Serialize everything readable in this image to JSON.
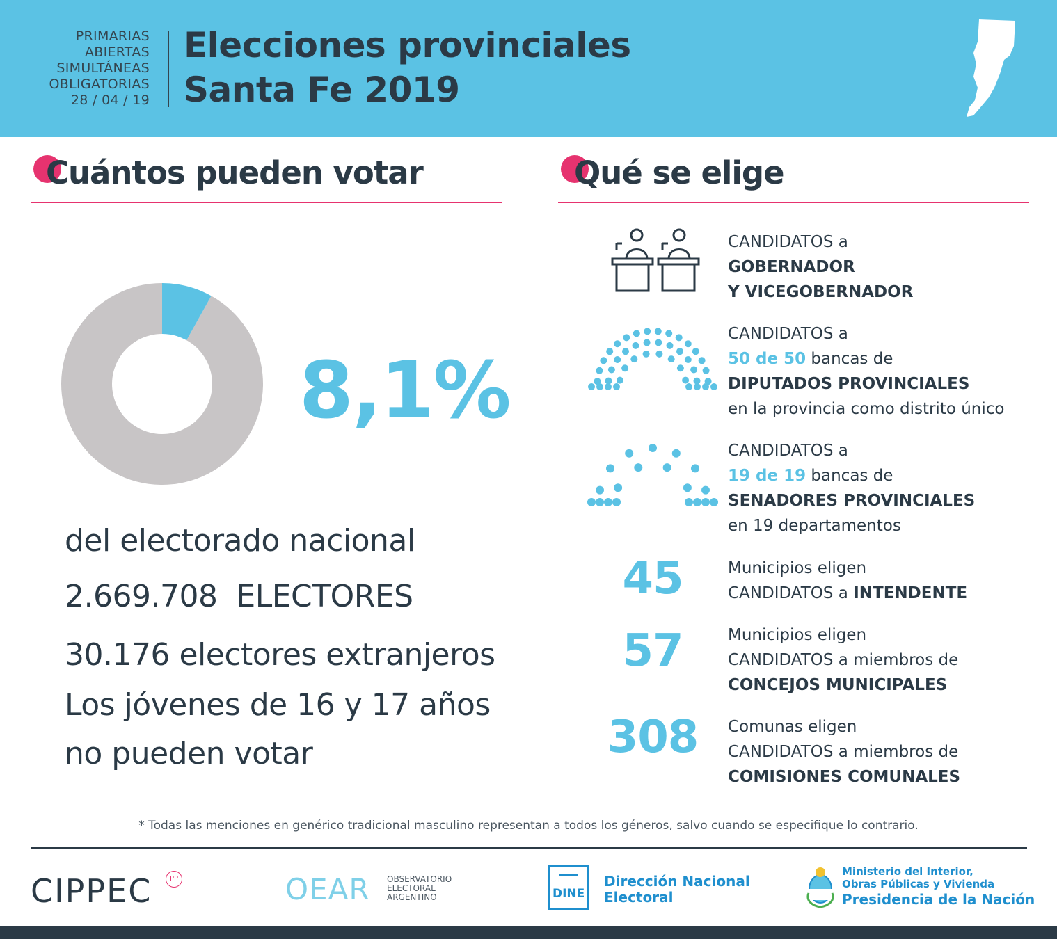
{
  "header": {
    "pre_lines": [
      "PRIMARIAS",
      "ABIERTAS",
      "SIMULTÁNEAS",
      "OBLIGATORIAS",
      "28 / 04 / 19"
    ],
    "title_line1": "Elecciones provinciales",
    "title_line2": "Santa Fe 2019"
  },
  "left": {
    "heading": "Cuántos pueden votar",
    "share_fraction": 0.081,
    "percent": "8,1%",
    "line1": "del electorado nacional",
    "electores_number": "2.669.708",
    "electores_label": "ELECTORES",
    "extranjeros_number": "30.176",
    "extranjeros_label": "electores extranjeros",
    "jovenes_line1": "Los jóvenes de 16 y 17 años",
    "jovenes_line2": "no pueden votar"
  },
  "right": {
    "heading": "Qué se elige",
    "gobernador": {
      "line1": "CANDIDATOS a",
      "line2": "GOBERNADOR",
      "line3": "Y VICEGOBERNADOR"
    },
    "diputados": {
      "line1": "CANDIDATOS a",
      "highlight": "50 de 50",
      "line2_rest": "bancas de",
      "line3": "DIPUTADOS PROVINCIALES",
      "line4": "en la provincia como distrito único"
    },
    "senadores": {
      "line1": "CANDIDATOS a",
      "highlight": "19 de 19",
      "line2_rest": "bancas de",
      "line3": "SENADORES PROVINCIALES",
      "line4": "en 19 departamentos"
    },
    "intendente": {
      "number": "45",
      "line1": "Municipios eligen",
      "line2_a": "CANDIDATOS a",
      "line2_b": "INTENDENTE"
    },
    "concejos": {
      "number": "57",
      "line1": "Municipios eligen",
      "line2": "CANDIDATOS a miembros de",
      "line3": "CONCEJOS MUNICIPALES"
    },
    "comisiones": {
      "number": "308",
      "line1": "Comunas eligen",
      "line2": "CANDIDATOS a miembros de",
      "line3": "COMISIONES COMUNALES"
    }
  },
  "footnote": "* Todas las menciones en genérico tradicional masculino representan a todos los géneros, salvo cuando se especifique lo contrario.",
  "logos": {
    "cippec": "CIPPEC",
    "cippec_badge": "PP",
    "oear_mark": "OEAR",
    "oear_line1": "OBSERVATORIO",
    "oear_line2": "ELECTORAL",
    "oear_line3": "ARGENTINO",
    "dine_box": "DINE",
    "dine_line1": "Dirección Nacional",
    "dine_line2": "Electoral",
    "min_line1": "Ministerio del Interior,",
    "min_line2": "Obras Públicas y Vivienda",
    "min_line3": "Presidencia de la Nación"
  },
  "colors": {
    "accent_blue": "#5bc2e4",
    "accent_pink": "#e6336f",
    "dark": "#2b3a46",
    "donut_grey": "#c8c5c6"
  }
}
